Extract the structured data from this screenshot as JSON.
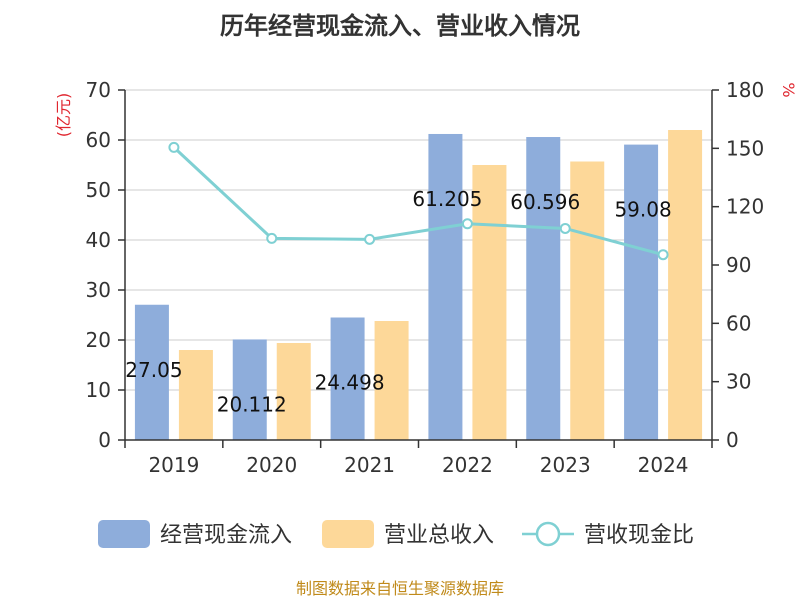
{
  "chart_data": {
    "type": "bar",
    "title": "历年经营现金流入、营业收入情况",
    "y_left_unit": "(亿元)",
    "y_right_unit": "%",
    "categories": [
      "2019",
      "2020",
      "2021",
      "2022",
      "2023",
      "2024"
    ],
    "y_left_ticks": [
      "0",
      "10",
      "20",
      "30",
      "40",
      "50",
      "60",
      "70"
    ],
    "y_right_ticks": [
      "0",
      "30",
      "60",
      "90",
      "120",
      "150",
      "180"
    ],
    "ylim_left": [
      0,
      70
    ],
    "ylim_right": [
      0,
      180
    ],
    "grid": true,
    "legend_position": "bottom",
    "series": [
      {
        "name": "经营现金流入",
        "kind": "bar",
        "axis": "left",
        "color": "#8eaddb",
        "values": [
          27.05,
          20.112,
          24.498,
          61.205,
          60.596,
          59.08
        ],
        "labels": [
          "27.05",
          "20.112",
          "24.498",
          "61.205",
          "60.596",
          "59.08"
        ]
      },
      {
        "name": "营业总收入",
        "kind": "bar",
        "axis": "left",
        "color": "#fdd899",
        "values": [
          18.0,
          19.4,
          23.8,
          55.0,
          55.7,
          62.0
        ]
      },
      {
        "name": "营收现金比",
        "kind": "line",
        "axis": "right",
        "color": "#7fd0d3",
        "values": [
          150.5,
          103.7,
          103.2,
          111.2,
          108.8,
          95.3
        ]
      }
    ],
    "source_text": "制图数据来自恒生聚源数据库"
  }
}
